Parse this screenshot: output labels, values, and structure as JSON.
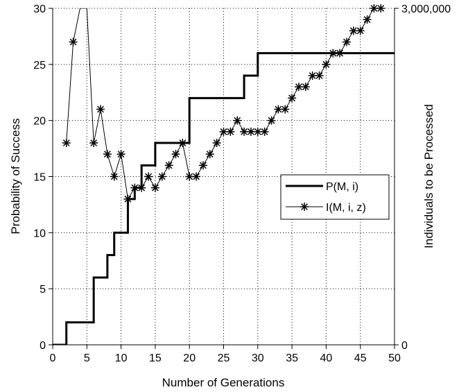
{
  "chart_data": {
    "type": "line",
    "xlabel": "Number of Generations",
    "ylabel": "Probability of Success",
    "y2label": "Individuals to be Processed",
    "xlim": [
      0,
      50
    ],
    "ylim": [
      0,
      30
    ],
    "y2lim": [
      0,
      3000000
    ],
    "xticks": [
      0,
      5,
      10,
      15,
      20,
      25,
      30,
      35,
      40,
      45,
      50
    ],
    "yticks": [
      0,
      5,
      10,
      15,
      20,
      25,
      30
    ],
    "y2ticks": [
      "0",
      "3,000,000"
    ],
    "grid": true,
    "legend_position": "center-right",
    "series": [
      {
        "name": "P(M, i)",
        "axis": "left",
        "style": "thick-step",
        "color": "#000000",
        "x": [
          0,
          1,
          2,
          3,
          4,
          5,
          6,
          7,
          8,
          9,
          10,
          11,
          12,
          13,
          14,
          15,
          16,
          17,
          18,
          19,
          20,
          21,
          22,
          23,
          24,
          25,
          26,
          27,
          28,
          29,
          30,
          31,
          35,
          40,
          45,
          50
        ],
        "values": [
          0,
          0,
          2,
          2,
          2,
          2,
          6,
          6,
          8,
          10,
          10,
          13,
          14,
          16,
          16,
          18,
          18,
          18,
          18,
          18,
          22,
          22,
          22,
          22,
          22,
          22,
          22,
          22,
          24,
          24,
          26,
          26,
          26,
          26,
          26,
          26
        ]
      },
      {
        "name": "I(M, i, z)",
        "axis": "right",
        "style": "thin-line-star-markers",
        "color": "#000000",
        "x": [
          2,
          3,
          4,
          5,
          6,
          7,
          8,
          9,
          10,
          11,
          12,
          13,
          14,
          15,
          16,
          17,
          18,
          19,
          20,
          21,
          22,
          23,
          24,
          25,
          26,
          27,
          28,
          29,
          30,
          31,
          32,
          33,
          34,
          35,
          36,
          37,
          38,
          39,
          40,
          41,
          42,
          43,
          44,
          45,
          46,
          47,
          48
        ],
        "values": [
          1800000,
          2700000,
          3000000,
          3000000,
          1800000,
          2100000,
          1700000,
          1500000,
          1700000,
          1300000,
          1400000,
          1400000,
          1500000,
          1400000,
          1500000,
          1600000,
          1700000,
          1800000,
          1500000,
          1500000,
          1600000,
          1700000,
          1800000,
          1900000,
          1900000,
          2000000,
          1900000,
          1900000,
          1900000,
          1900000,
          2000000,
          2100000,
          2100000,
          2200000,
          2300000,
          2300000,
          2400000,
          2400000,
          2500000,
          2600000,
          2600000,
          2700000,
          2800000,
          2800000,
          2900000,
          3000000,
          3000000
        ],
        "markers_hidden_at": [
          4,
          5
        ]
      }
    ]
  }
}
